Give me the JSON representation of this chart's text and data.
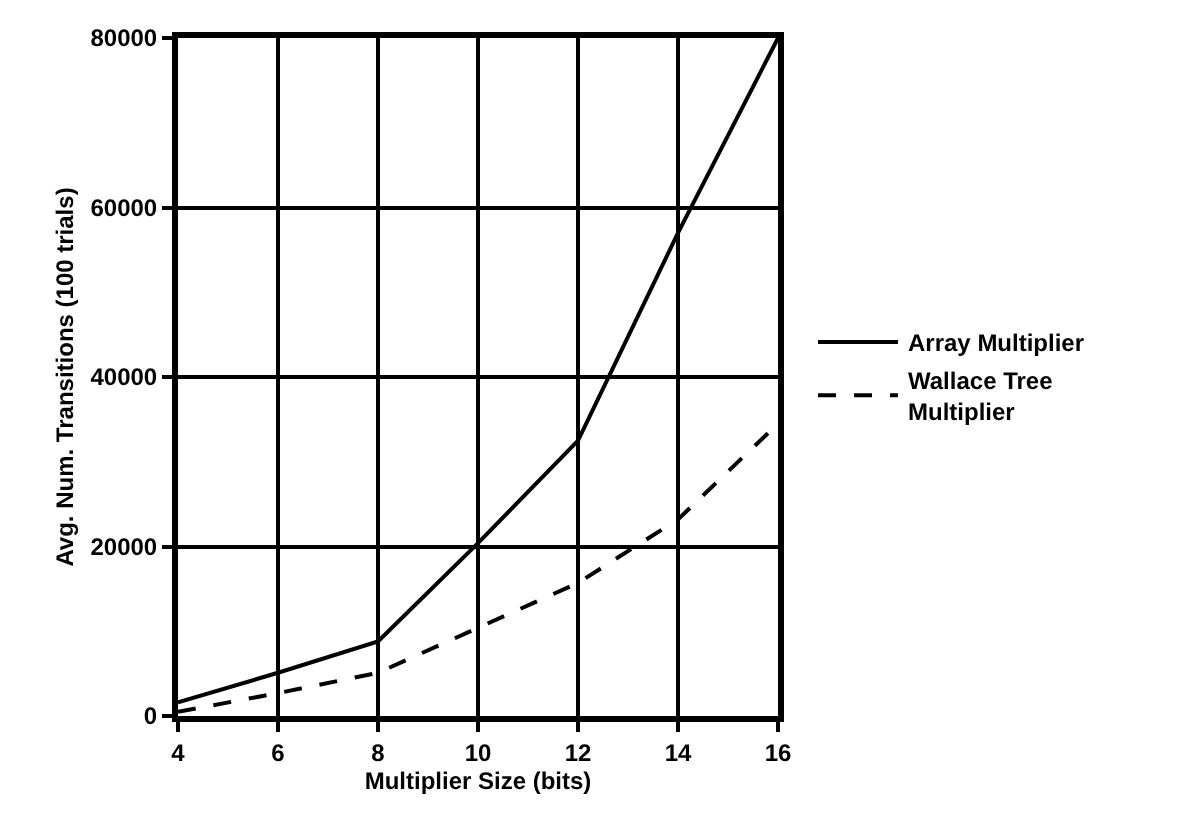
{
  "chart_data": {
    "type": "line",
    "xlabel": "Multiplier Size (bits)",
    "ylabel": "Avg. Num. Transitions (100 trials)",
    "x": [
      4,
      6,
      8,
      10,
      12,
      14,
      16
    ],
    "series": [
      {
        "name": "Array Multiplier",
        "color": "#000000",
        "line_style": "solid",
        "values": [
          1600,
          5100,
          8800,
          20400,
          32500,
          57000,
          80000
        ]
      },
      {
        "name": "Wallace Tree Multiplier",
        "color": "#000000",
        "line_style": "dashed",
        "values": [
          500,
          2700,
          5100,
          10400,
          15700,
          23200,
          34500
        ]
      }
    ],
    "xlim": [
      4,
      16
    ],
    "xticks": [
      4,
      6,
      8,
      10,
      12,
      14,
      16
    ],
    "ylim": [
      0,
      80000
    ],
    "yticks": [
      0,
      20000,
      40000,
      60000,
      80000
    ],
    "grid": true,
    "legend": "right",
    "marker": "none"
  }
}
